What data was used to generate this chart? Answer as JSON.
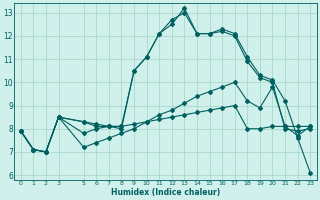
{
  "xlabel": "Humidex (Indice chaleur)",
  "xlim": [
    -0.5,
    23.5
  ],
  "ylim": [
    5.8,
    13.4
  ],
  "yticks": [
    6,
    7,
    8,
    9,
    10,
    11,
    12,
    13
  ],
  "xticks": [
    0,
    1,
    2,
    3,
    5,
    6,
    7,
    8,
    9,
    10,
    11,
    12,
    13,
    14,
    15,
    16,
    17,
    18,
    19,
    20,
    21,
    22,
    23
  ],
  "bg_color": "#cff0eb",
  "grid_color": "#aad8cc",
  "line_color": "#006060",
  "series1_x": [
    0,
    1,
    2,
    3,
    5,
    6,
    7,
    8,
    9,
    10,
    11,
    12,
    13,
    14,
    15,
    16,
    17,
    18,
    19,
    20,
    21,
    22,
    23
  ],
  "series1_y": [
    7.9,
    7.1,
    7.0,
    8.5,
    8.3,
    8.2,
    8.1,
    8.0,
    10.5,
    11.1,
    12.1,
    12.7,
    13.0,
    12.1,
    12.1,
    12.3,
    12.1,
    11.1,
    10.3,
    10.1,
    9.2,
    7.6,
    6.1
  ],
  "series2_x": [
    0,
    1,
    2,
    3,
    5,
    6,
    7,
    8,
    9,
    10,
    11,
    12,
    13,
    14,
    15,
    16,
    17,
    18,
    19,
    20,
    21,
    22,
    23
  ],
  "series2_y": [
    7.9,
    7.1,
    7.0,
    8.5,
    8.3,
    8.1,
    8.1,
    8.1,
    10.5,
    11.1,
    12.1,
    12.5,
    13.2,
    12.1,
    12.1,
    12.2,
    12.0,
    10.9,
    10.2,
    10.0,
    8.0,
    7.9,
    8.0
  ],
  "series3_x": [
    0,
    1,
    2,
    3,
    5,
    6,
    7,
    8,
    9,
    10,
    11,
    12,
    13,
    14,
    15,
    16,
    17,
    18,
    19,
    20,
    21,
    22,
    23
  ],
  "series3_y": [
    7.9,
    7.1,
    7.0,
    8.5,
    7.8,
    8.0,
    8.1,
    8.1,
    8.2,
    8.3,
    8.4,
    8.5,
    8.6,
    8.7,
    8.8,
    8.9,
    9.0,
    8.0,
    8.0,
    8.1,
    8.1,
    8.1,
    8.1
  ],
  "series4_x": [
    0,
    1,
    2,
    3,
    5,
    6,
    7,
    8,
    9,
    10,
    11,
    12,
    13,
    14,
    15,
    16,
    17,
    18,
    19,
    20,
    21,
    22,
    23
  ],
  "series4_y": [
    7.9,
    7.1,
    7.0,
    8.5,
    7.2,
    7.4,
    7.6,
    7.8,
    8.0,
    8.3,
    8.6,
    8.8,
    9.1,
    9.4,
    9.6,
    9.8,
    10.0,
    9.2,
    8.9,
    9.8,
    8.1,
    7.7,
    8.1
  ]
}
